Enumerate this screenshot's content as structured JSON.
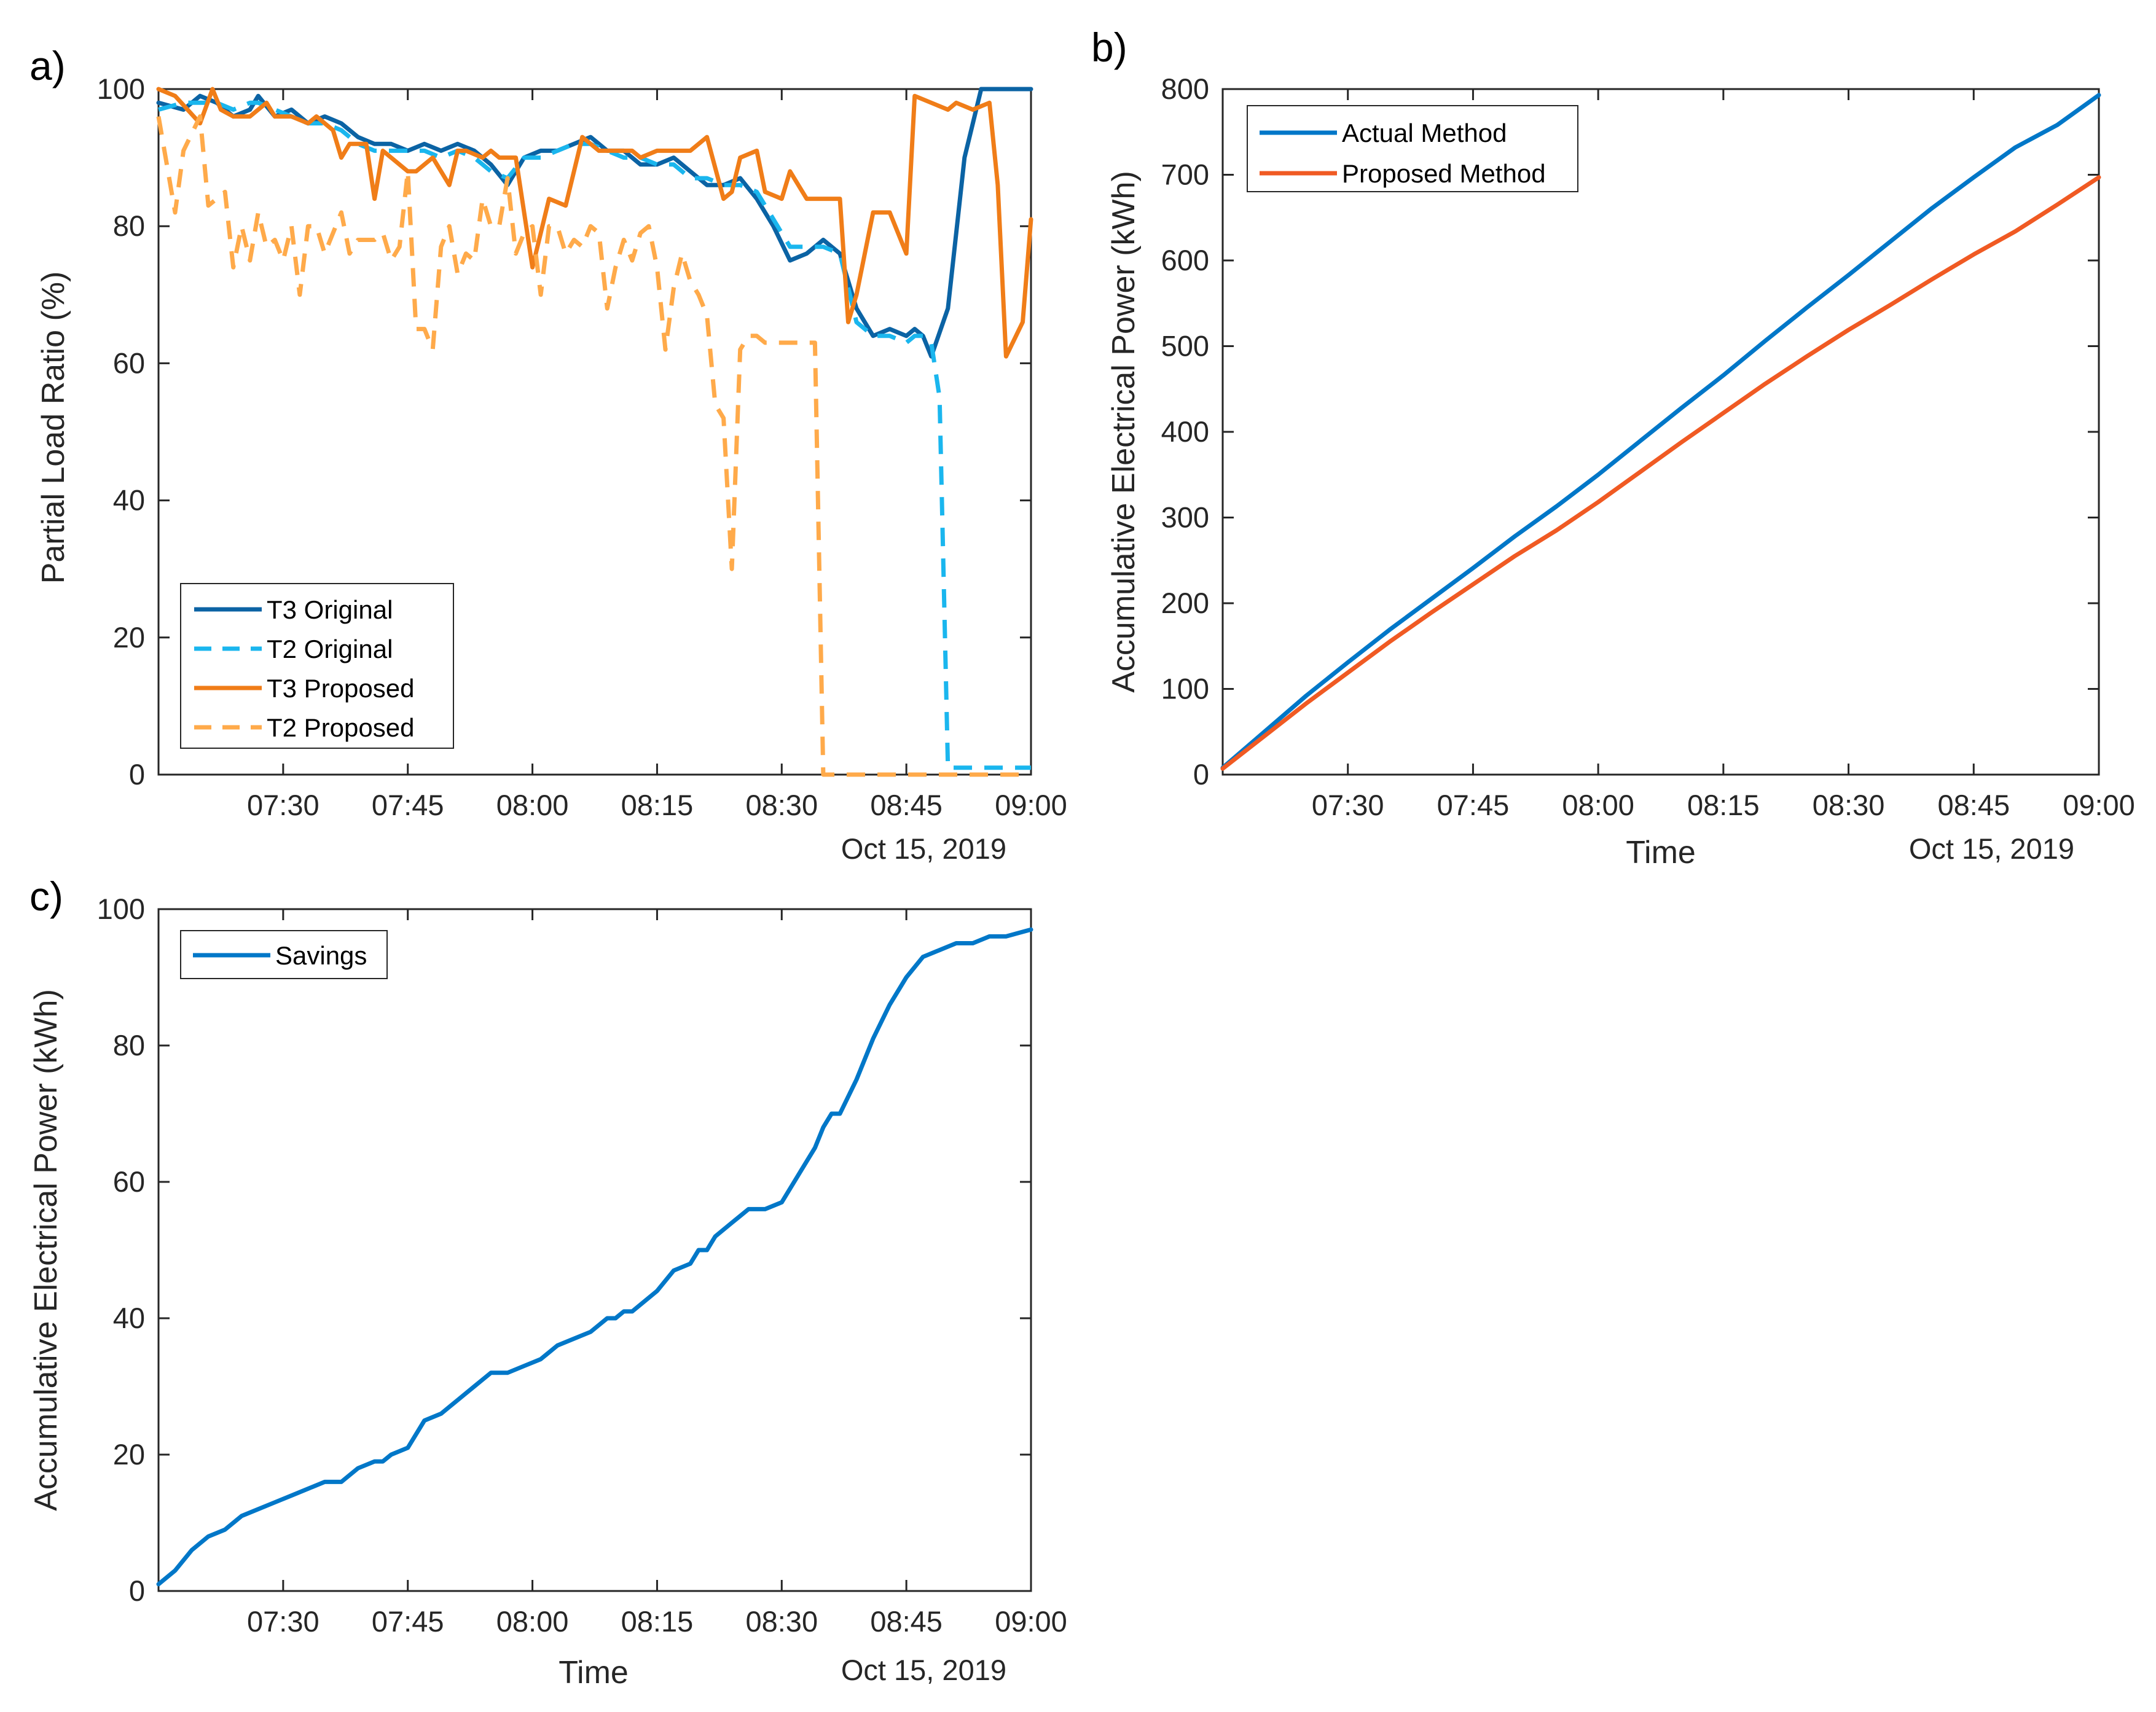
{
  "colors": {
    "t3_original": "#0b63a4",
    "t2_original": "#1ab6ee",
    "t3_proposed": "#f07d18",
    "t2_proposed": "#ffaa4a",
    "actual": "#0077c8",
    "proposed": "#f05a23",
    "savings": "#0077c8",
    "axis": "#262626"
  },
  "chart_data": [
    {
      "id": "a",
      "panel_label": "a)",
      "type": "line",
      "ylabel": "Partial Load Ratio (%)",
      "xlabel": "",
      "date_label": "Oct 15, 2019",
      "xlim": [
        0,
        105
      ],
      "ylim": [
        0,
        100
      ],
      "yticks": [
        0,
        20,
        40,
        60,
        80,
        100
      ],
      "xticks": [
        {
          "v": 15,
          "label": "07:30"
        },
        {
          "v": 30,
          "label": "07:45"
        },
        {
          "v": 45,
          "label": "08:00"
        },
        {
          "v": 60,
          "label": "08:15"
        },
        {
          "v": 75,
          "label": "08:30"
        },
        {
          "v": 90,
          "label": "08:45"
        },
        {
          "v": 105,
          "label": "09:00"
        }
      ],
      "legend": {
        "position": "lower-left"
      },
      "series": [
        {
          "name": "T3 Original",
          "color_key": "t3_original",
          "dash": "solid",
          "x": [
            0,
            3,
            5,
            7,
            9,
            11,
            12,
            14,
            16,
            18,
            20,
            22,
            24,
            26,
            28,
            30,
            32,
            34,
            36,
            38,
            40,
            42,
            44,
            46,
            48,
            50,
            52,
            54,
            56,
            58,
            60,
            62,
            64,
            66,
            68,
            70,
            72,
            74,
            76,
            78,
            80,
            82,
            84,
            86,
            88,
            90,
            91,
            92,
            93,
            95,
            97,
            99,
            101,
            103,
            105
          ],
          "y": [
            98,
            97,
            99,
            98,
            96,
            97,
            99,
            96,
            97,
            95,
            96,
            95,
            93,
            92,
            92,
            91,
            92,
            91,
            92,
            91,
            89,
            86,
            90,
            91,
            91,
            92,
            93,
            91,
            91,
            89,
            89,
            90,
            88,
            86,
            86,
            87,
            84,
            80,
            75,
            76,
            78,
            76,
            68,
            64,
            65,
            64,
            65,
            64,
            61,
            68,
            90,
            100,
            100,
            100,
            100
          ]
        },
        {
          "name": "T2 Original",
          "color_key": "t2_original",
          "dash": "dashed",
          "x": [
            0,
            3,
            5,
            7,
            9,
            11,
            12,
            14,
            16,
            18,
            20,
            22,
            24,
            26,
            28,
            30,
            32,
            34,
            36,
            38,
            40,
            42,
            44,
            46,
            48,
            50,
            52,
            54,
            56,
            58,
            60,
            62,
            64,
            66,
            68,
            70,
            72,
            74,
            76,
            78,
            80,
            82,
            84,
            86,
            88,
            90,
            91,
            92,
            93,
            94,
            95,
            97,
            99,
            101,
            103,
            105
          ],
          "y": [
            97,
            98,
            98,
            98,
            97,
            98,
            98,
            97,
            96,
            95,
            95,
            94,
            92,
            91,
            91,
            91,
            91,
            90,
            91,
            90,
            88,
            87,
            90,
            90,
            91,
            92,
            92,
            91,
            90,
            90,
            89,
            89,
            87,
            87,
            86,
            86,
            85,
            81,
            77,
            77,
            77,
            76,
            66,
            64,
            64,
            63,
            64,
            64,
            63,
            55,
            1,
            1,
            1,
            1,
            1,
            1
          ]
        },
        {
          "name": "T3 Proposed",
          "color_key": "t3_proposed",
          "dash": "solid",
          "x": [
            0,
            2,
            3.5,
            5,
            6.5,
            7.5,
            9,
            11,
            13,
            14,
            16,
            18,
            19,
            21,
            22,
            23,
            25,
            26,
            27,
            29,
            30,
            31,
            33,
            35,
            36,
            37,
            39,
            40,
            41,
            43,
            45,
            47,
            49,
            51,
            53,
            55,
            57,
            58,
            60,
            62,
            64,
            66,
            68,
            69,
            70,
            72,
            73,
            75,
            76,
            78,
            80,
            81,
            82,
            83,
            84,
            86,
            88,
            90,
            91,
            93,
            95,
            96,
            98,
            100,
            101,
            102,
            104,
            105
          ],
          "y": [
            100,
            99,
            97,
            95,
            100,
            97,
            96,
            96,
            98,
            96,
            96,
            95,
            96,
            94,
            90,
            92,
            92,
            84,
            91,
            89,
            88,
            88,
            90,
            86,
            91,
            91,
            90,
            91,
            90,
            90,
            74,
            84,
            83,
            93,
            91,
            91,
            91,
            90,
            91,
            91,
            91,
            93,
            84,
            85,
            90,
            91,
            85,
            84,
            88,
            84,
            84,
            84,
            84,
            66,
            70,
            82,
            82,
            76,
            99,
            98,
            97,
            98,
            97,
            98,
            86,
            61,
            66,
            81
          ]
        },
        {
          "name": "T2 Proposed",
          "color_key": "t2_proposed",
          "dash": "dashed",
          "x": [
            0,
            2,
            3,
            5,
            6,
            7,
            8,
            9,
            10,
            11,
            12,
            13,
            14,
            15,
            16,
            17,
            18,
            19,
            20,
            21,
            22,
            23,
            24,
            25,
            26,
            27,
            28,
            29,
            30,
            31,
            32,
            33,
            34,
            35,
            36,
            37,
            38,
            39,
            40,
            41,
            42,
            43,
            44,
            45,
            46,
            47,
            48,
            49,
            50,
            51,
            52,
            53,
            54,
            55,
            56,
            57,
            58,
            59,
            60,
            61,
            62,
            63,
            64,
            65,
            66,
            67,
            68,
            69,
            70,
            71,
            72,
            73,
            74,
            75,
            76,
            77,
            78,
            79,
            80,
            81,
            82,
            83,
            84,
            85,
            86,
            87,
            88,
            89,
            90,
            91,
            92,
            93,
            94,
            95,
            96,
            97,
            98,
            99,
            100,
            101,
            102,
            103,
            104,
            105
          ],
          "y": [
            96,
            82,
            91,
            96,
            83,
            84,
            85,
            74,
            80,
            75,
            82,
            77,
            78,
            75,
            80,
            70,
            80,
            80,
            76,
            79,
            82,
            76,
            78,
            78,
            78,
            79,
            75,
            77,
            88,
            65,
            65,
            62,
            77,
            80,
            73,
            76,
            75,
            84,
            80,
            80,
            87,
            76,
            79,
            80,
            70,
            80,
            80,
            76,
            78,
            77,
            80,
            79,
            68,
            74,
            78,
            75,
            79,
            80,
            74,
            62,
            71,
            76,
            72,
            70,
            67,
            54,
            52,
            30,
            62,
            64,
            64,
            63,
            63,
            63,
            63,
            63,
            63,
            63,
            0,
            0,
            0,
            0,
            0,
            0,
            0,
            0,
            0,
            0,
            0,
            0,
            0,
            0,
            0,
            0,
            0,
            0,
            0,
            0,
            0,
            0,
            0,
            0,
            0,
            0
          ]
        }
      ]
    },
    {
      "id": "b",
      "panel_label": "b)",
      "type": "line",
      "ylabel": "Accumulative Electrical Power (kWh)",
      "xlabel": "Time",
      "date_label": "Oct 15, 2019",
      "xlim": [
        0,
        105
      ],
      "ylim": [
        0,
        800
      ],
      "yticks": [
        0,
        100,
        200,
        300,
        400,
        500,
        600,
        700,
        800
      ],
      "xticks": [
        {
          "v": 15,
          "label": "07:30"
        },
        {
          "v": 30,
          "label": "07:45"
        },
        {
          "v": 45,
          "label": "08:00"
        },
        {
          "v": 60,
          "label": "08:15"
        },
        {
          "v": 75,
          "label": "08:30"
        },
        {
          "v": 90,
          "label": "08:45"
        },
        {
          "v": 105,
          "label": "09:00"
        }
      ],
      "legend": {
        "position": "top-left"
      },
      "series": [
        {
          "name": "Actual Method",
          "color_key": "actual",
          "dash": "solid",
          "x": [
            0,
            5,
            10,
            15,
            20,
            25,
            30,
            35,
            40,
            45,
            50,
            55,
            60,
            65,
            70,
            75,
            80,
            85,
            90,
            95,
            100,
            105
          ],
          "y": [
            8,
            50,
            92,
            131,
            169,
            205,
            241,
            278,
            313,
            350,
            389,
            428,
            466,
            506,
            545,
            583,
            622,
            661,
            697,
            732,
            758,
            793
          ]
        },
        {
          "name": "Proposed Method",
          "color_key": "proposed",
          "dash": "solid",
          "x": [
            0,
            5,
            10,
            15,
            20,
            25,
            30,
            35,
            40,
            45,
            50,
            55,
            60,
            65,
            70,
            75,
            80,
            85,
            90,
            95,
            100,
            105
          ],
          "y": [
            7,
            45,
            83,
            119,
            155,
            189,
            222,
            255,
            285,
            318,
            353,
            388,
            422,
            456,
            488,
            519,
            548,
            578,
            607,
            634,
            665,
            697
          ]
        }
      ]
    },
    {
      "id": "c",
      "panel_label": "c)",
      "type": "line",
      "ylabel": "Accumulative Electrical Power (kWh)",
      "xlabel": "Time",
      "date_label": "Oct 15, 2019",
      "xlim": [
        0,
        105
      ],
      "ylim": [
        0,
        100
      ],
      "yticks": [
        0,
        20,
        40,
        60,
        80,
        100
      ],
      "xticks": [
        {
          "v": 15,
          "label": "07:30"
        },
        {
          "v": 30,
          "label": "07:45"
        },
        {
          "v": 45,
          "label": "08:00"
        },
        {
          "v": 60,
          "label": "08:15"
        },
        {
          "v": 75,
          "label": "08:30"
        },
        {
          "v": 90,
          "label": "08:45"
        },
        {
          "v": 105,
          "label": "09:00"
        }
      ],
      "legend": {
        "position": "top-left"
      },
      "series": [
        {
          "name": "Savings",
          "color_key": "savings",
          "dash": "solid",
          "x": [
            0,
            2,
            4,
            6,
            8,
            10,
            12,
            14,
            16,
            18,
            20,
            22,
            24,
            26,
            27,
            28,
            30,
            32,
            34,
            35,
            36,
            37,
            38,
            39,
            40,
            42,
            44,
            46,
            48,
            50,
            52,
            53,
            54,
            55,
            56,
            57,
            58,
            59,
            60,
            62,
            64,
            65,
            66,
            67,
            69,
            70,
            71,
            72,
            73,
            75,
            77,
            79,
            80,
            81,
            82,
            84,
            86,
            88,
            90,
            92,
            94,
            96,
            98,
            100,
            102,
            105
          ],
          "y": [
            1,
            3,
            6,
            8,
            9,
            11,
            12,
            13,
            14,
            15,
            16,
            16,
            18,
            19,
            19,
            20,
            21,
            25,
            26,
            27,
            28,
            29,
            30,
            31,
            32,
            32,
            33,
            34,
            36,
            37,
            38,
            39,
            40,
            40,
            41,
            41,
            42,
            43,
            44,
            47,
            48,
            50,
            50,
            52,
            54,
            55,
            56,
            56,
            56,
            57,
            61,
            65,
            68,
            70,
            70,
            75,
            81,
            86,
            90,
            93,
            94,
            95,
            95,
            96,
            96,
            97
          ]
        }
      ]
    }
  ]
}
